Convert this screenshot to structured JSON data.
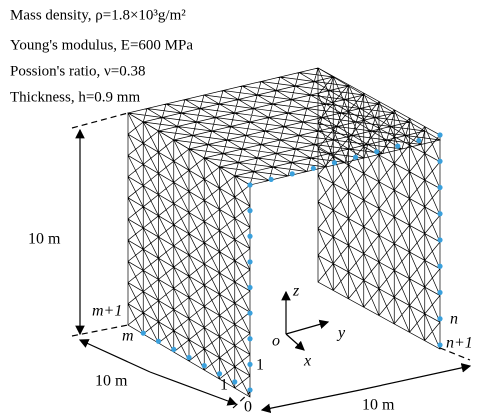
{
  "properties": [
    "Mass density, ρ=1.8×10³g/m²",
    "Young's modulus, E=600 MPa",
    "Possion's ratio, ν=0.38",
    "Thickness, h=0.9 mm"
  ],
  "dimensions": {
    "height": "10 m",
    "depth": "10 m",
    "width": "10 m"
  },
  "node_labels": {
    "m_plus_1": "m+1",
    "m": "m",
    "one_left": "1",
    "zero": "0",
    "one_right": "1",
    "n": "n",
    "n_plus_1": "n+1"
  },
  "axes": {
    "z": "z",
    "y": "y",
    "x": "x",
    "origin": "o"
  }
}
